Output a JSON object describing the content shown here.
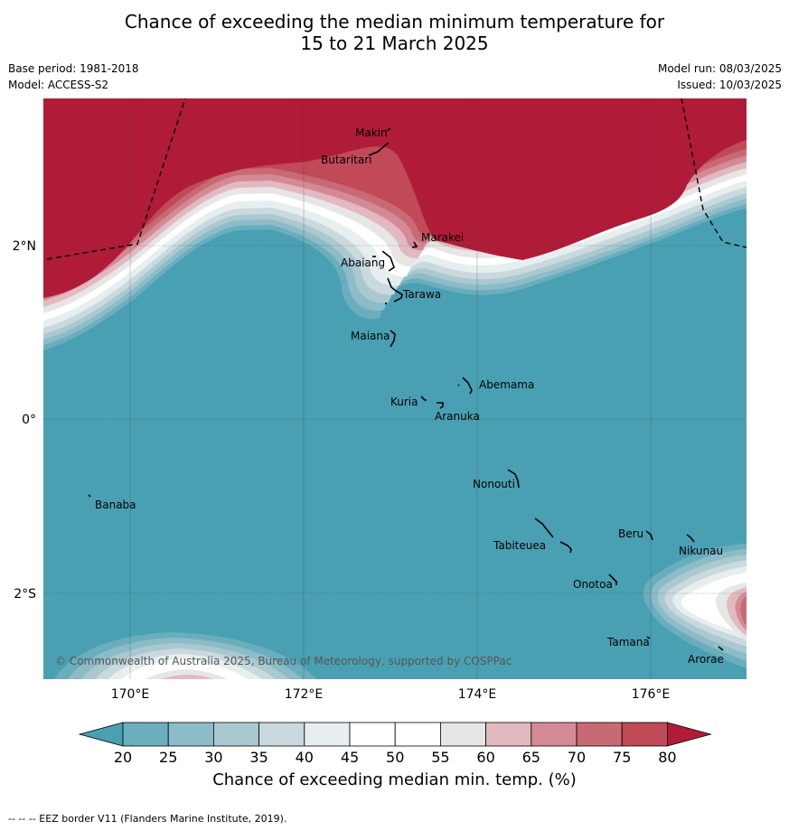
{
  "title_line1": "Chance of exceeding the median minimum temperature for",
  "title_line2": "15 to 21 March 2025",
  "base_period": "Base period: 1981-2018",
  "model": "Model: ACCESS-S2",
  "model_run": "Model run: 08/03/2025",
  "issued": "Issued: 10/03/2025",
  "copyright": "© Commonwealth of Australia 2025, Bureau of Meteorology, supported by COSPPac",
  "lat_labels": [
    "2°N",
    "0°",
    "2°S"
  ],
  "lon_labels": [
    "170°E",
    "172°E",
    "174°E",
    "176°E"
  ],
  "places": [
    {
      "name": "Makin"
    },
    {
      "name": "Butaritari"
    },
    {
      "name": "Marakei"
    },
    {
      "name": "Abaiang"
    },
    {
      "name": "Tarawa"
    },
    {
      "name": "Maiana"
    },
    {
      "name": "Abemama"
    },
    {
      "name": "Kuria"
    },
    {
      "name": "Aranuka"
    },
    {
      "name": "Nonouti"
    },
    {
      "name": "Banaba"
    },
    {
      "name": "Beru"
    },
    {
      "name": "Tabiteuea"
    },
    {
      "name": "Nikunau"
    },
    {
      "name": "Onotoa"
    },
    {
      "name": "Tamana"
    },
    {
      "name": "Arorae"
    }
  ],
  "colorbar": {
    "ticks": [
      "20",
      "25",
      "30",
      "35",
      "40",
      "45",
      "50",
      "55",
      "60",
      "65",
      "70",
      "75",
      "80"
    ],
    "colors": [
      "#4aa0b3",
      "#6aaebd",
      "#8bbcc7",
      "#aac8cf",
      "#c9d9dd",
      "#e7eef0",
      "#ffffff",
      "#ffffff",
      "#e6e6e6",
      "#e2b9c0",
      "#d48a95",
      "#c86a75",
      "#c04a58",
      "#b01c38"
    ],
    "label": "Chance of exceeding median min. temp. (%)"
  },
  "footnote": "--  --  -- EEZ border V11 (Flanders Marine Institute, 2019)."
}
